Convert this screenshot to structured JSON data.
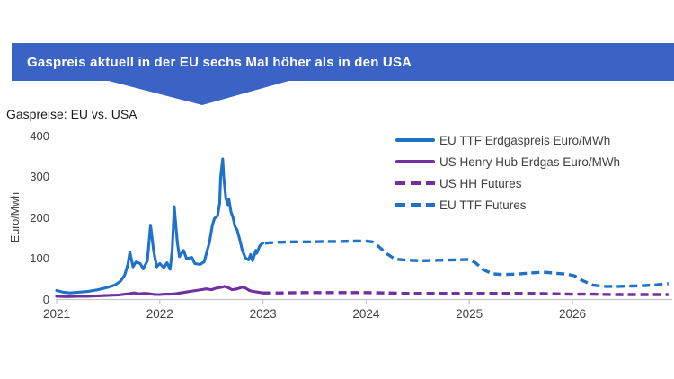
{
  "banner": {
    "title": "Gaspreis aktuell in der EU sechs Mal höher als in den USA",
    "bg_color": "#3B63C5",
    "text_color": "#FFFFFF"
  },
  "subtitle": "Gaspreise: EU vs. USA",
  "colors": {
    "eu_blue": "#1E73C8",
    "us_purple": "#7030A0",
    "axis_text": "#404040",
    "axis_line": "#C6C6C6"
  },
  "chart_data": {
    "type": "line",
    "title": "Gaspreise: EU vs. USA",
    "xlabel": "",
    "ylabel": "Euro/Mwh",
    "xlim": [
      2021,
      2026.95
    ],
    "ylim": [
      0,
      400
    ],
    "x_ticks": [
      2021,
      2022,
      2023,
      2024,
      2025,
      2026
    ],
    "y_ticks": [
      0,
      100,
      200,
      300,
      400
    ],
    "grid": false,
    "legend_position": "upper right",
    "series": [
      {
        "name": "EU TTF Erdgaspreis Euro/MWh",
        "color": "#1E73C8",
        "style": "solid",
        "points": [
          [
            2021.0,
            22
          ],
          [
            2021.06,
            18
          ],
          [
            2021.13,
            16
          ],
          [
            2021.22,
            18
          ],
          [
            2021.31,
            20
          ],
          [
            2021.4,
            24
          ],
          [
            2021.5,
            30
          ],
          [
            2021.57,
            36
          ],
          [
            2021.62,
            45
          ],
          [
            2021.66,
            60
          ],
          [
            2021.69,
            85
          ],
          [
            2021.71,
            116
          ],
          [
            2021.74,
            80
          ],
          [
            2021.77,
            92
          ],
          [
            2021.81,
            88
          ],
          [
            2021.84,
            75
          ],
          [
            2021.88,
            95
          ],
          [
            2021.91,
            182
          ],
          [
            2021.94,
            120
          ],
          [
            2021.97,
            80
          ],
          [
            2022.0,
            88
          ],
          [
            2022.04,
            78
          ],
          [
            2022.07,
            90
          ],
          [
            2022.1,
            74
          ],
          [
            2022.12,
            120
          ],
          [
            2022.14,
            227
          ],
          [
            2022.17,
            140
          ],
          [
            2022.19,
            105
          ],
          [
            2022.23,
            120
          ],
          [
            2022.26,
            100
          ],
          [
            2022.31,
            103
          ],
          [
            2022.34,
            88
          ],
          [
            2022.39,
            86
          ],
          [
            2022.43,
            92
          ],
          [
            2022.46,
            120
          ],
          [
            2022.48,
            138
          ],
          [
            2022.51,
            182
          ],
          [
            2022.53,
            198
          ],
          [
            2022.56,
            205
          ],
          [
            2022.58,
            235
          ],
          [
            2022.59,
            300
          ],
          [
            2022.61,
            344
          ],
          [
            2022.62,
            300
          ],
          [
            2022.64,
            248
          ],
          [
            2022.66,
            232
          ],
          [
            2022.67,
            245
          ],
          [
            2022.69,
            215
          ],
          [
            2022.71,
            200
          ],
          [
            2022.73,
            178
          ],
          [
            2022.75,
            170
          ],
          [
            2022.78,
            142
          ],
          [
            2022.8,
            120
          ],
          [
            2022.83,
            102
          ],
          [
            2022.86,
            97
          ],
          [
            2022.88,
            110
          ],
          [
            2022.9,
            95
          ],
          [
            2022.93,
            120
          ],
          [
            2022.94,
            113
          ],
          [
            2022.97,
            132
          ],
          [
            2023.0,
            138
          ]
        ]
      },
      {
        "name": "US Henry Hub Erdgas Euro/MWh",
        "color": "#7030A0",
        "style": "solid",
        "points": [
          [
            2021.0,
            8
          ],
          [
            2021.1,
            7
          ],
          [
            2021.2,
            8
          ],
          [
            2021.3,
            8
          ],
          [
            2021.4,
            9
          ],
          [
            2021.5,
            10
          ],
          [
            2021.6,
            11
          ],
          [
            2021.7,
            14
          ],
          [
            2021.75,
            16
          ],
          [
            2021.8,
            14
          ],
          [
            2021.85,
            15
          ],
          [
            2021.9,
            14
          ],
          [
            2021.95,
            12
          ],
          [
            2022.0,
            12
          ],
          [
            2022.05,
            13
          ],
          [
            2022.1,
            13
          ],
          [
            2022.15,
            14
          ],
          [
            2022.2,
            16
          ],
          [
            2022.25,
            18
          ],
          [
            2022.3,
            20
          ],
          [
            2022.35,
            22
          ],
          [
            2022.4,
            24
          ],
          [
            2022.45,
            26
          ],
          [
            2022.5,
            24
          ],
          [
            2022.55,
            28
          ],
          [
            2022.6,
            30
          ],
          [
            2022.63,
            32
          ],
          [
            2022.67,
            28
          ],
          [
            2022.7,
            24
          ],
          [
            2022.75,
            26
          ],
          [
            2022.8,
            30
          ],
          [
            2022.83,
            28
          ],
          [
            2022.87,
            22
          ],
          [
            2022.9,
            20
          ],
          [
            2022.95,
            18
          ],
          [
            2023.0,
            16
          ]
        ]
      },
      {
        "name": "US HH Futures",
        "color": "#7030A0",
        "style": "dashed",
        "points": [
          [
            2023.0,
            16
          ],
          [
            2023.2,
            16
          ],
          [
            2023.4,
            17
          ],
          [
            2023.6,
            17
          ],
          [
            2023.8,
            17
          ],
          [
            2024.0,
            17
          ],
          [
            2024.2,
            16
          ],
          [
            2024.4,
            15
          ],
          [
            2024.6,
            15
          ],
          [
            2024.8,
            15
          ],
          [
            2025.0,
            15
          ],
          [
            2025.2,
            15
          ],
          [
            2025.4,
            15
          ],
          [
            2025.6,
            15
          ],
          [
            2025.8,
            14
          ],
          [
            2026.0,
            13
          ],
          [
            2026.2,
            13
          ],
          [
            2026.4,
            12
          ],
          [
            2026.6,
            12
          ],
          [
            2026.8,
            12
          ],
          [
            2026.93,
            12
          ]
        ]
      },
      {
        "name": "EU TTF Futures",
        "color": "#1E73C8",
        "style": "dashed",
        "points": [
          [
            2023.02,
            138
          ],
          [
            2023.15,
            140
          ],
          [
            2023.3,
            141
          ],
          [
            2023.45,
            141
          ],
          [
            2023.6,
            142
          ],
          [
            2023.75,
            142
          ],
          [
            2023.9,
            143
          ],
          [
            2024.0,
            143
          ],
          [
            2024.06,
            141
          ],
          [
            2024.12,
            130
          ],
          [
            2024.2,
            112
          ],
          [
            2024.28,
            99
          ],
          [
            2024.4,
            96
          ],
          [
            2024.55,
            95
          ],
          [
            2024.7,
            96
          ],
          [
            2024.85,
            97
          ],
          [
            2025.0,
            98
          ],
          [
            2025.06,
            90
          ],
          [
            2025.13,
            74
          ],
          [
            2025.22,
            63
          ],
          [
            2025.32,
            61
          ],
          [
            2025.45,
            62
          ],
          [
            2025.6,
            65
          ],
          [
            2025.72,
            67
          ],
          [
            2025.85,
            64
          ],
          [
            2025.95,
            62
          ],
          [
            2026.02,
            58
          ],
          [
            2026.1,
            46
          ],
          [
            2026.2,
            35
          ],
          [
            2026.32,
            32
          ],
          [
            2026.45,
            32
          ],
          [
            2026.58,
            33
          ],
          [
            2026.7,
            34
          ],
          [
            2026.82,
            36
          ],
          [
            2026.93,
            39
          ]
        ]
      }
    ]
  }
}
